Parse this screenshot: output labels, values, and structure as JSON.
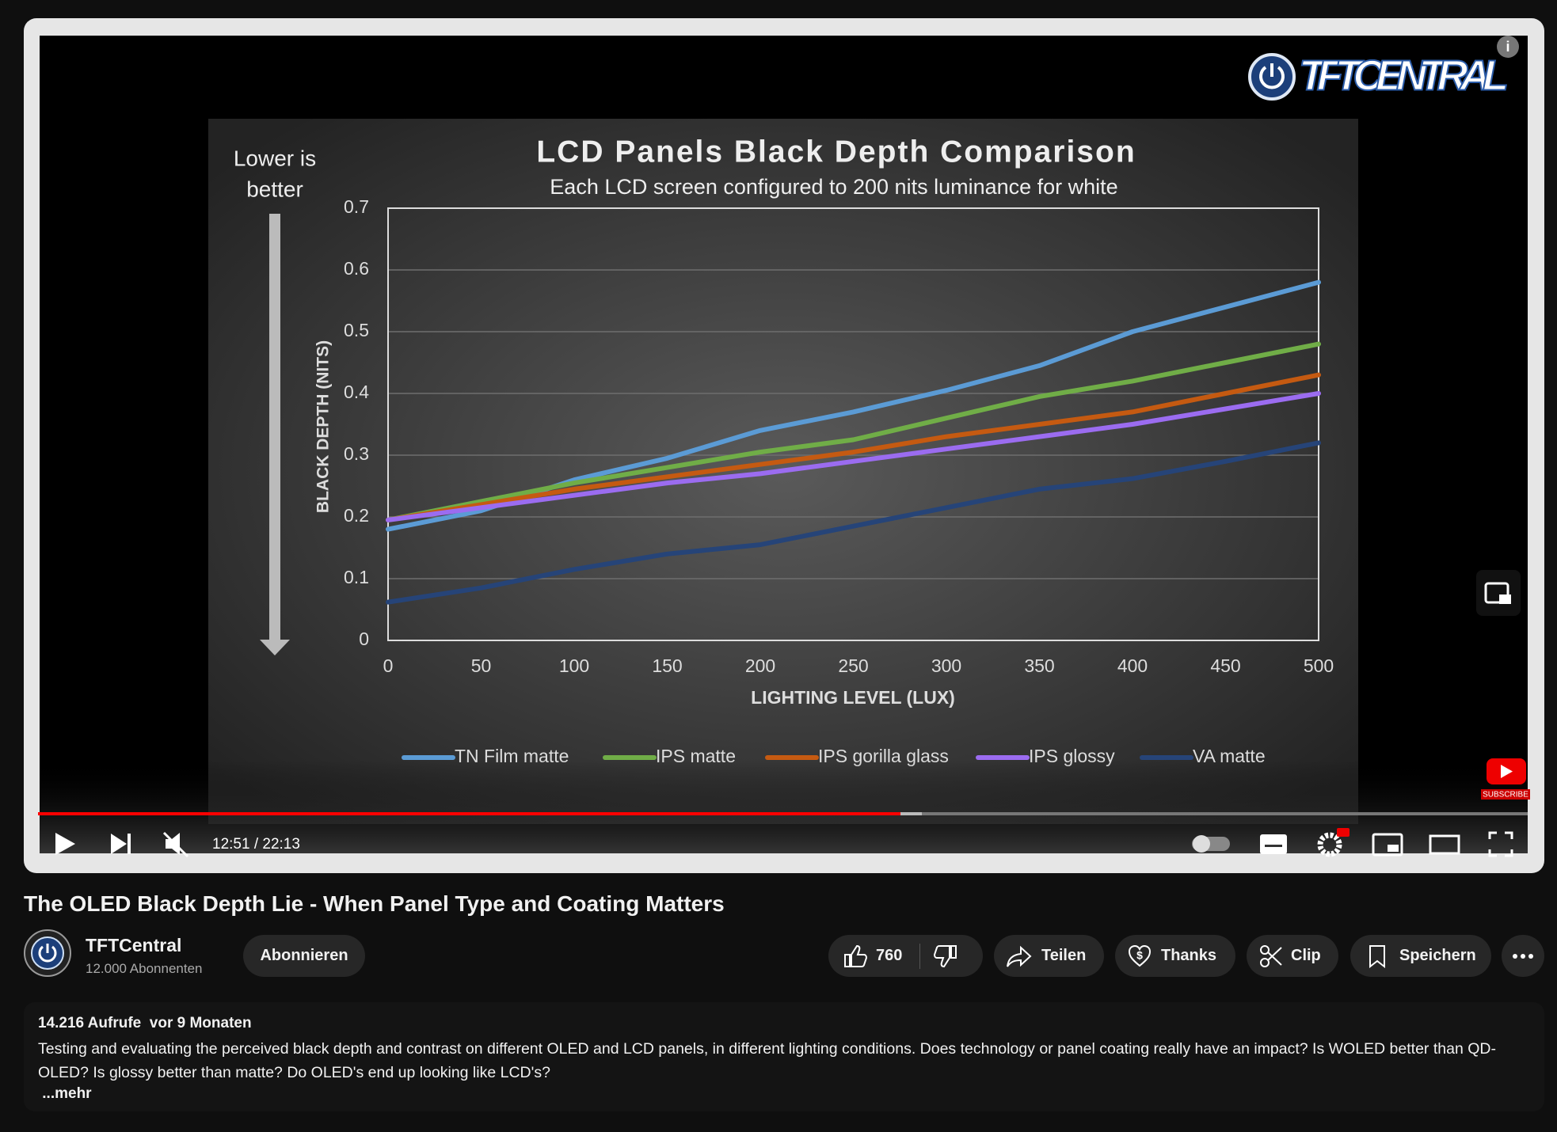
{
  "player": {
    "chart_data": {
      "type": "line",
      "title": "LCD Panels Black Depth Comparison",
      "subtitle": "Each LCD screen configured to 200 nits luminance for white",
      "annotations": [
        "Lower is",
        "better"
      ],
      "x_label": "LIGHTING LEVEL (LUX)",
      "y_label": "BLACK DEPTH (NITS)",
      "x": [
        0,
        50,
        100,
        150,
        200,
        250,
        300,
        350,
        400,
        450,
        500
      ],
      "xlim": [
        0,
        500
      ],
      "xticks": [
        0,
        50,
        100,
        150,
        200,
        250,
        300,
        350,
        400,
        450,
        500
      ],
      "ylim": [
        0,
        0.7
      ],
      "yticks": [
        0,
        0.1,
        0.2,
        0.3,
        0.4,
        0.5,
        0.6,
        0.7
      ],
      "grid": true,
      "legend": "bottom",
      "series": [
        {
          "name": "TN Film matte",
          "color": "#5b9bd5",
          "values": [
            0.18,
            0.21,
            0.26,
            0.295,
            0.34,
            0.37,
            0.405,
            0.445,
            0.5,
            0.54,
            0.58
          ]
        },
        {
          "name": "IPS matte",
          "color": "#70ad47",
          "values": [
            0.195,
            0.225,
            0.255,
            0.28,
            0.305,
            0.325,
            0.36,
            0.395,
            0.42,
            0.45,
            0.48
          ]
        },
        {
          "name": "IPS gorilla glass",
          "color": "#c55a11",
          "values": [
            0.195,
            0.22,
            0.245,
            0.265,
            0.285,
            0.305,
            0.33,
            0.35,
            0.37,
            0.4,
            0.43
          ]
        },
        {
          "name": "IPS glossy",
          "color": "#9b6cf0",
          "values": [
            0.195,
            0.215,
            0.235,
            0.255,
            0.27,
            0.29,
            0.31,
            0.33,
            0.35,
            0.375,
            0.4
          ]
        },
        {
          "name": "VA matte",
          "color": "#264478",
          "values": [
            0.062,
            0.085,
            0.115,
            0.14,
            0.155,
            0.185,
            0.215,
            0.245,
            0.262,
            0.29,
            0.32
          ]
        }
      ]
    },
    "logo": "TFTCENTRAL",
    "watermark": "SUBSCRIBE",
    "time": "12:51 / 22:13"
  },
  "video": {
    "title": "The OLED Black Depth Lie - When Panel Type and Coating Matters",
    "channel": {
      "name": "TFTCentral",
      "subscribers": "12.000 Abonnenten",
      "subscribe": "Abonnieren"
    },
    "actions": {
      "likes": "760",
      "share": "Teilen",
      "thanks": "Thanks",
      "clip": "Clip",
      "save": "Speichern"
    }
  },
  "description": {
    "stats": "14.216 Aufrufe  vor 9 Monaten",
    "text": "Testing and evaluating the perceived black depth and contrast on different OLED and LCD panels, in different lighting conditions. Does technology or panel coating really have an impact? Is WOLED better than QD-OLED? Is glossy better than matte? Do OLED's end up looking like LCD's?",
    "more": " ...mehr"
  }
}
